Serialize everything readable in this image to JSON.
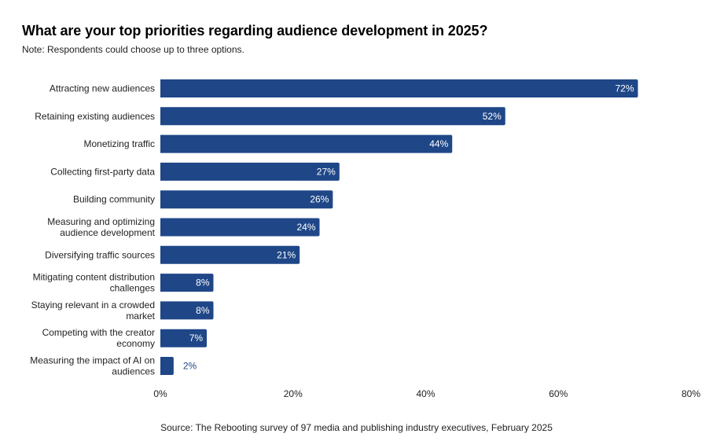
{
  "chart_data": {
    "type": "bar",
    "orientation": "horizontal",
    "title": "What are your top priorities regarding audience development in 2025?",
    "subtitle": "Note: Respondents could choose up to three options.",
    "source": "Source: The Rebooting survey of 97 media and publishing industry executives, February 2025",
    "categories": [
      [
        "Attracting new audiences"
      ],
      [
        "Retaining existing audiences"
      ],
      [
        "Monetizing traffic"
      ],
      [
        "Collecting first-party data"
      ],
      [
        "Building community"
      ],
      [
        "Measuring and optimizing",
        "audience development"
      ],
      [
        "Diversifying traffic sources"
      ],
      [
        "Mitigating content distribution",
        "challenges"
      ],
      [
        "Staying relevant in a crowded",
        "market"
      ],
      [
        "Competing with the creator",
        "economy"
      ],
      [
        "Measuring the impact of AI on",
        "audiences"
      ]
    ],
    "values": [
      72,
      52,
      44,
      27,
      26,
      24,
      21,
      8,
      8,
      7,
      2
    ],
    "value_labels": [
      "72%",
      "52%",
      "44%",
      "27%",
      "26%",
      "24%",
      "21%",
      "8%",
      "8%",
      "7%",
      "2%"
    ],
    "xlabel": "",
    "ylabel": "",
    "xlim": [
      0,
      80
    ],
    "xticks": [
      0,
      20,
      40,
      60,
      80
    ],
    "xtick_labels": [
      "0%",
      "20%",
      "40%",
      "60%",
      "80%"
    ],
    "grid": false,
    "legend": "none",
    "colors": {
      "bar": "#1f4788",
      "label_inside": "#ffffff",
      "label_outside": "#1f4788"
    }
  }
}
